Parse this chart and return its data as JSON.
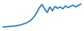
{
  "x": [
    0,
    1,
    2,
    3,
    4,
    5,
    6,
    7,
    8,
    9,
    10,
    11,
    12,
    13,
    14,
    15,
    16,
    17,
    18,
    19,
    20,
    21,
    22,
    23,
    24,
    25,
    26,
    27,
    28,
    29,
    30
  ],
  "y": [
    0.5,
    0.6,
    0.7,
    0.8,
    0.9,
    1.0,
    1.2,
    1.5,
    1.8,
    2.2,
    2.8,
    3.6,
    4.8,
    6.5,
    8.5,
    9.8,
    8.0,
    6.5,
    8.8,
    7.2,
    9.0,
    8.2,
    8.8,
    8.0,
    9.2,
    8.5,
    9.0,
    9.5,
    8.8,
    9.5,
    10.0
  ],
  "line_color": "#1a7abf",
  "line_width": 1.3,
  "background_color": "#ffffff",
  "ylim": [
    -0.5,
    11
  ],
  "xlim": [
    -0.5,
    30.5
  ]
}
